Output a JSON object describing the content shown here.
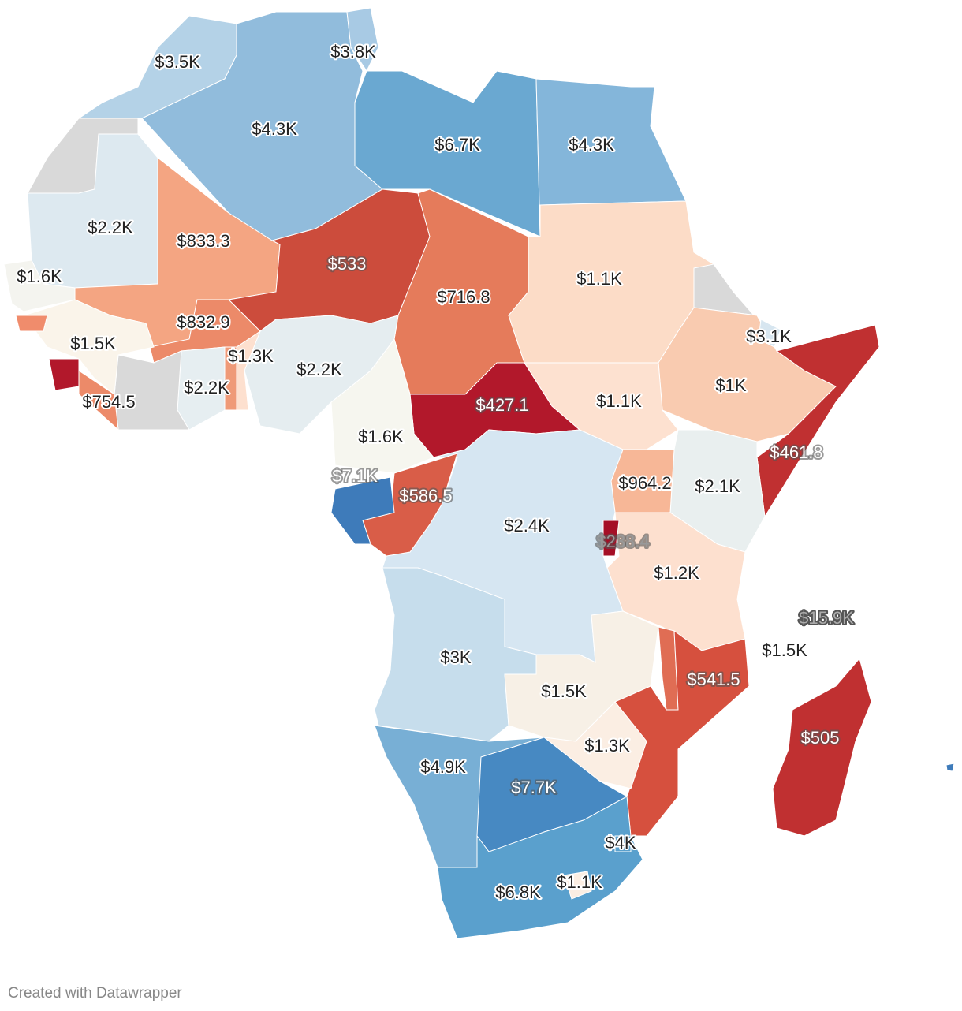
{
  "map": {
    "regions": [
      {
        "color": "#d9d9d9"
      },
      {
        "label": "$3.5K",
        "color": "#b4d2e7"
      },
      {
        "label": "$4.3K",
        "color": "#91bcdc"
      },
      {
        "label": "$3.8K",
        "color": "#a8cae4"
      },
      {
        "label": "$6.7K",
        "color": "#6aa8d1"
      },
      {
        "label": "$4.3K",
        "color": "#84b6da"
      },
      {
        "label": "$2.2K",
        "color": "#dde9f0"
      },
      {
        "label": "$833.3",
        "color": "#f4a582"
      },
      {
        "label": "$533",
        "color": "#cc4c3c"
      },
      {
        "label": "$716.8",
        "color": "#e57b5b"
      },
      {
        "label": "$1.1K",
        "color": "#fcdcc7"
      },
      {
        "color": "#d9d9d9"
      },
      {
        "label": "$1K",
        "color": "#f9cbb0"
      },
      {
        "label": "$3.1K",
        "color": "#d7e6f0"
      },
      {
        "label": "$461.8",
        "color": "#c03031"
      },
      {
        "label": "$1.1K",
        "color": "#fde1d0"
      },
      {
        "label": "$427.1",
        "color": "#b2182b"
      },
      {
        "label": "$2.1K",
        "color": "#e9efef"
      },
      {
        "label": "$964.2",
        "color": "#f7b797"
      },
      {
        "label": "$1.2K",
        "color": "#fde0cf"
      },
      {
        "label": "$2.4K",
        "color": "#d6e6f2"
      },
      {
        "label": "$586.5",
        "color": "#d95d48"
      },
      {
        "label": "$7.1K",
        "color": "#3e7bba"
      },
      {
        "label": "$1.6K",
        "color": "#f6f6ef"
      },
      {
        "label": "$2.2K",
        "color": "#e5edf0"
      },
      {
        "label": "$1.3K",
        "color": "#fde0cf"
      },
      {
        "color": "#ef9a78"
      },
      {
        "label": "$832.9",
        "color": "#ec8a69"
      },
      {
        "label": "$2.2K",
        "color": "#e6eef1"
      },
      {
        "color": "#d9d9d9"
      },
      {
        "label": "$1.5K",
        "color": "#faf4ea"
      },
      {
        "color": "#b2182b"
      },
      {
        "label": "$754.5",
        "color": "#ec8a69"
      },
      {
        "color": "#f08c6c"
      },
      {
        "label": "$1.6K",
        "color": "#f4f4ef"
      },
      {
        "label": "$3K",
        "color": "#c6ddec"
      },
      {
        "label": "$1.5K",
        "color": "#f7f0e6"
      },
      {
        "color": "#e06d54"
      },
      {
        "label": "$541.5",
        "color": "#d6503e"
      },
      {
        "label": "$1.3K",
        "color": "#fbeee3"
      },
      {
        "label": "$4.9K",
        "color": "#78afd5"
      },
      {
        "label": "$7.7K",
        "color": "#4789c2"
      },
      {
        "label": "$6.8K",
        "color": "#5aa0cd"
      },
      {
        "label": "$1.1K",
        "color": "#fbeee3"
      },
      {
        "label": "$4K",
        "color": "#5aa0cd"
      },
      {
        "label": "$505",
        "color": "#c03031"
      },
      {
        "color": "#3e7bba"
      },
      {
        "label": "$238.4",
        "color": "#a50f26"
      },
      {
        "label": "$15.9K"
      },
      {
        "label": "$1.5K"
      }
    ]
  },
  "footer": "Created with Datawrapper"
}
